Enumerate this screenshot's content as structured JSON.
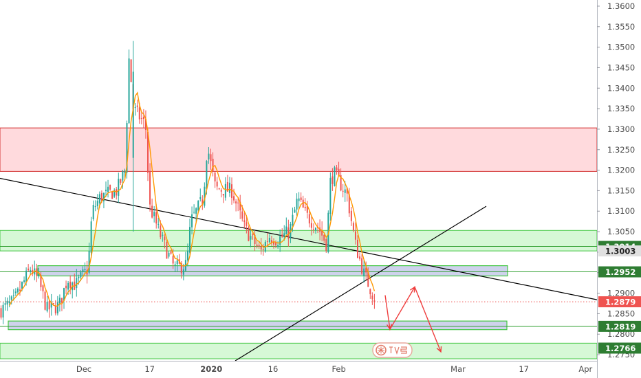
{
  "chart_data": {
    "type": "candlestick",
    "title": "",
    "xlabel": "",
    "ylabel": "",
    "ylim": [
      1.2735,
      1.3615
    ],
    "y_ticks": [
      "1.3600",
      "1.3550",
      "1.3500",
      "1.3450",
      "1.3400",
      "1.3350",
      "1.3300",
      "1.3250",
      "1.3200",
      "1.3150",
      "1.3100",
      "1.3050",
      "1.3000",
      "1.2950",
      "1.2900",
      "1.2850",
      "1.2800",
      "1.2750"
    ],
    "x_tick_labels": [
      {
        "label": "Dec",
        "date": "2019-12-01"
      },
      {
        "label": "17",
        "date": "2019-12-17"
      },
      {
        "label": "2020",
        "date": "2020-01-01"
      },
      {
        "label": "16",
        "date": "2020-01-16"
      },
      {
        "label": "Feb",
        "date": "2020-02-01"
      },
      {
        "label": "Mar",
        "date": "2020-03-01"
      },
      {
        "label": "17",
        "date": "2020-03-17"
      },
      {
        "label": "Apr",
        "date": "2020-04-01"
      }
    ],
    "price_series": [
      {
        "date": "2019-11-08",
        "close": 1.285
      },
      {
        "date": "2019-11-11",
        "close": 1.286
      },
      {
        "date": "2019-11-14",
        "close": 1.288
      },
      {
        "date": "2019-11-18",
        "close": 1.296
      },
      {
        "date": "2019-11-20",
        "close": 1.293
      },
      {
        "date": "2019-11-22",
        "close": 1.286
      },
      {
        "date": "2019-11-25",
        "close": 1.287
      },
      {
        "date": "2019-11-27",
        "close": 1.2935
      },
      {
        "date": "2019-11-29",
        "close": 1.292
      },
      {
        "date": "2019-12-02",
        "close": 1.296
      },
      {
        "date": "2019-12-03",
        "close": 1.31
      },
      {
        "date": "2019-12-05",
        "close": 1.3135
      },
      {
        "date": "2019-12-09",
        "close": 1.315
      },
      {
        "date": "2019-12-11",
        "close": 1.32
      },
      {
        "date": "2019-12-12",
        "close": 1.348
      },
      {
        "date": "2019-12-13",
        "close": 1.335
      },
      {
        "date": "2019-12-16",
        "close": 1.331
      },
      {
        "date": "2019-12-17",
        "close": 1.311
      },
      {
        "date": "2019-12-18",
        "close": 1.3085
      },
      {
        "date": "2019-12-20",
        "close": 1.303
      },
      {
        "date": "2019-12-23",
        "close": 1.296
      },
      {
        "date": "2019-12-26",
        "close": 1.297
      },
      {
        "date": "2019-12-27",
        "close": 1.3075
      },
      {
        "date": "2019-12-30",
        "close": 1.313
      },
      {
        "date": "2019-12-31",
        "close": 1.326
      },
      {
        "date": "2020-01-02",
        "close": 1.3155
      },
      {
        "date": "2020-01-06",
        "close": 1.315
      },
      {
        "date": "2020-01-09",
        "close": 1.306
      },
      {
        "date": "2020-01-13",
        "close": 1.3
      },
      {
        "date": "2020-01-15",
        "close": 1.304
      },
      {
        "date": "2020-01-17",
        "close": 1.303
      },
      {
        "date": "2020-01-20",
        "close": 1.305
      },
      {
        "date": "2020-01-22",
        "close": 1.313
      },
      {
        "date": "2020-01-24",
        "close": 1.309
      },
      {
        "date": "2020-01-27",
        "close": 1.306
      },
      {
        "date": "2020-01-29",
        "close": 1.302
      },
      {
        "date": "2020-01-30",
        "close": 1.318
      },
      {
        "date": "2020-01-31",
        "close": 1.319
      },
      {
        "date": "2020-02-03",
        "close": 1.314
      },
      {
        "date": "2020-02-05",
        "close": 1.302
      },
      {
        "date": "2020-02-07",
        "close": 1.295
      },
      {
        "date": "2020-02-10",
        "close": 1.288
      }
    ],
    "zones": [
      {
        "name": "resistance-zone",
        "from": 1.3197,
        "to": 1.3303,
        "color": "#ffcdd2",
        "border": "#d32f2f"
      },
      {
        "name": "support-zone-upper",
        "from": 1.3003,
        "to": 1.3053,
        "color": "#c8f5c8",
        "border": "#43c743"
      },
      {
        "name": "support-zone-lower",
        "from": 1.274,
        "to": 1.2778,
        "color": "#c8f5c8",
        "border": "#43c743"
      }
    ],
    "price_labels": [
      {
        "text": "1.3014",
        "value": 1.3014,
        "color": "#2e7d32"
      },
      {
        "text": "1.3003",
        "value": 1.3003,
        "color": "#e0e0e0"
      },
      {
        "text": "1.2952",
        "value": 1.2952,
        "color": "#2e7d32"
      },
      {
        "text": "1.2879",
        "value": 1.2879,
        "color": "#ef5350"
      },
      {
        "text": "1.2819",
        "value": 1.2819,
        "color": "#2e7d32"
      },
      {
        "text": "1.2766",
        "value": 1.2766,
        "color": "#2e7d32"
      }
    ],
    "current_price": 1.2879,
    "colors": {
      "up": "#26a69a",
      "down": "#ef5350",
      "ma": "#ff9800",
      "trendline": "#000000",
      "arrow": "#ef3d3d"
    },
    "grid": false
  }
}
